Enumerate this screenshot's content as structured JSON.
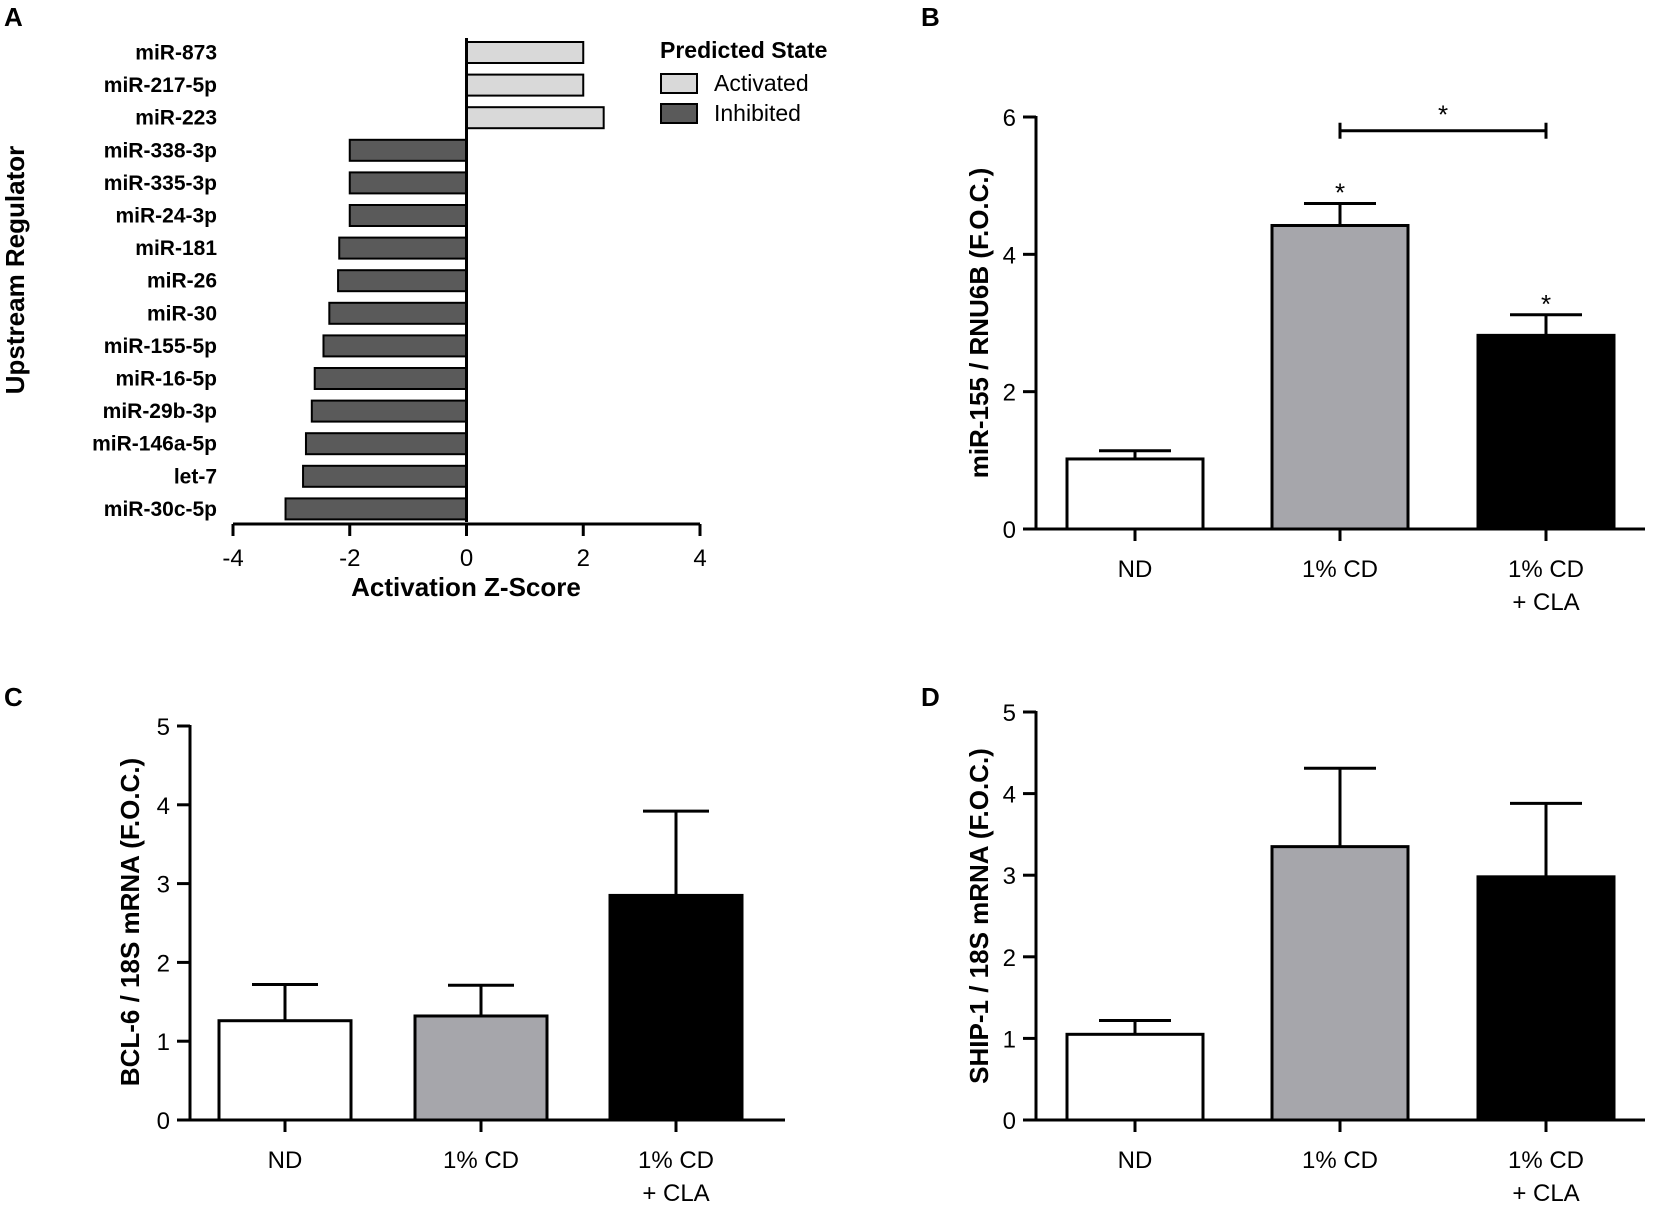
{
  "panel_labels": [
    "A",
    "B",
    "C",
    "D"
  ],
  "colors": {
    "activated": "#d9d9d9",
    "inhibited": "#5a5a5a",
    "nd": "#ffffff",
    "cd": "#a6a6ab",
    "cd_cla": "#000000"
  },
  "chart_data": [
    {
      "panel": "A",
      "type": "bar",
      "orientation": "horizontal",
      "ylabel": "Upstream Regulator",
      "xlabel": "Activation Z-Score",
      "xlim": [
        -4,
        4
      ],
      "xticks": [
        -4,
        -2,
        0,
        2,
        4
      ],
      "categories": [
        "miR-873",
        "miR-217-5p",
        "miR-223",
        "miR-338-3p",
        "miR-335-3p",
        "miR-24-3p",
        "miR-181",
        "miR-26",
        "miR-30",
        "miR-155-5p",
        "miR-16-5p",
        "miR-29b-3p",
        "miR-146a-5p",
        "let-7",
        "miR-30c-5p"
      ],
      "values": [
        2.0,
        2.0,
        2.35,
        -2.0,
        -2.0,
        -2.0,
        -2.18,
        -2.2,
        -2.35,
        -2.45,
        -2.6,
        -2.65,
        -2.75,
        -2.8,
        -3.1
      ],
      "legend": {
        "title": "Predicted State",
        "entries": [
          "Activated",
          "Inhibited"
        ],
        "position": "top-right"
      }
    },
    {
      "panel": "B",
      "type": "bar",
      "ylabel": "miR-155 / RNU6B (F.O.C.)",
      "ylim": [
        0,
        6
      ],
      "yticks": [
        0,
        2,
        4,
        6
      ],
      "categories": [
        [
          "ND"
        ],
        [
          "1% CD"
        ],
        [
          "1% CD",
          "+ CLA"
        ]
      ],
      "values": [
        1.02,
        4.42,
        2.82
      ],
      "errors": [
        0.12,
        0.32,
        0.3
      ],
      "significance": {
        "bar_stars": [
          "",
          "*",
          "*"
        ],
        "bracket": {
          "from": 1,
          "to": 2,
          "y": 5.8,
          "label": "*"
        }
      }
    },
    {
      "panel": "C",
      "type": "bar",
      "ylabel": "BCL-6 / 18S mRNA (F.O.C.)",
      "ylim": [
        0,
        5
      ],
      "yticks": [
        0,
        1,
        2,
        3,
        4,
        5
      ],
      "categories": [
        [
          "ND"
        ],
        [
          "1% CD"
        ],
        [
          "1% CD",
          "+ CLA"
        ]
      ],
      "values": [
        1.26,
        1.32,
        2.85
      ],
      "errors": [
        0.46,
        0.39,
        1.07
      ]
    },
    {
      "panel": "D",
      "type": "bar",
      "ylabel": "SHIP-1 / 18S mRNA (F.O.C.)",
      "ylim": [
        0,
        5
      ],
      "yticks": [
        0,
        1,
        2,
        3,
        4,
        5
      ],
      "categories": [
        [
          "ND"
        ],
        [
          "1% CD"
        ],
        [
          "1% CD",
          "+ CLA"
        ]
      ],
      "values": [
        1.05,
        3.35,
        2.98
      ],
      "errors": [
        0.17,
        0.96,
        0.9
      ]
    }
  ]
}
